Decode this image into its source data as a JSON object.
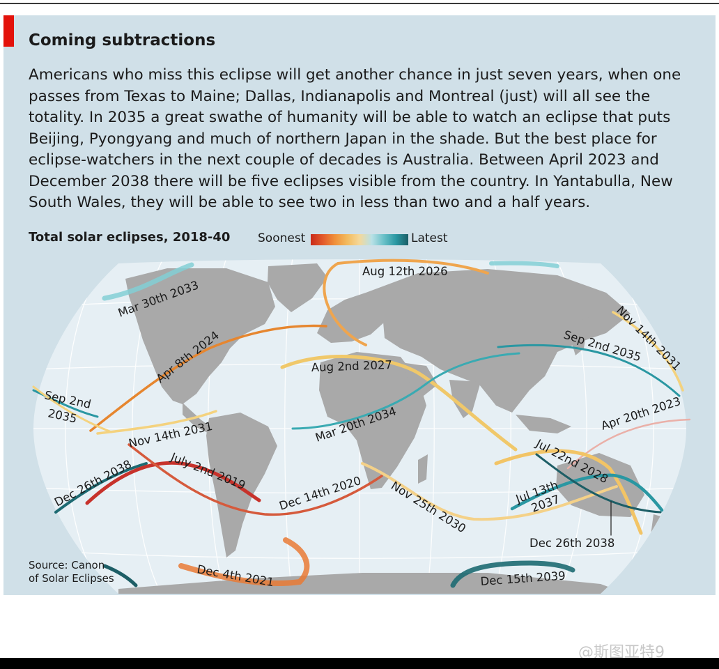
{
  "header": {
    "title": "Coming subtractions",
    "body": "Americans who miss this eclipse will get another chance in just seven years, when one passes from Texas to Maine; Dallas, Indianapolis and Montreal (just) will all see the totality. In 2035 a great swathe of humanity will be able to watch an eclipse that puts Beijing, Pyongyang and much of northern Japan in the shade. But the best place for eclipse-watchers in the next couple of decades is Australia. Between April 2023 and December 2038 there will be five eclipses visible from the country. In Yantabulla, New South Wales, they will be able to see two in less than two and a half years."
  },
  "chart": {
    "title": "Total solar eclipses, 2018-40",
    "legend_low": "Soonest",
    "legend_high": "Latest",
    "source_line1": "Source: Canon",
    "source_line2": "of Solar Eclipses"
  },
  "eclipses": {
    "mar2033": "Mar 30th 2033",
    "aug2026": "Aug 12th 2026",
    "nov2031a": "Nov 14th 2031",
    "sep2035a": "Sep 2nd 2035",
    "apr2024": "Apr 8th 2024",
    "aug2027": "Aug 2nd 2027",
    "sep2035b_1": "Sep 2nd",
    "sep2035b_2": "2035",
    "nov2031b": "Nov 14th 2031",
    "mar2034": "Mar 20th 2034",
    "apr2023": "Apr 20th 2023",
    "jul2028": "Jul 22nd 2028",
    "dec2038a": "Dec 26th 2038",
    "jul2019": "July 2nd 2019",
    "dec2020": "Dec 14th 2020",
    "nov2030": "Nov 25th 2030",
    "jul2037_1": "Jul 13th",
    "jul2037_2": "2037",
    "dec2038b": "Dec 26th 2038",
    "dec2021": "Dec 4th 2021",
    "dec2039": "Dec 15th 2039"
  },
  "colors": {
    "accent": "#e3120b",
    "ocean": "#e6eff4",
    "land": "#a9a9a9",
    "panel": "#d0e0e8"
  },
  "watermark": "@斯图亚特9"
}
